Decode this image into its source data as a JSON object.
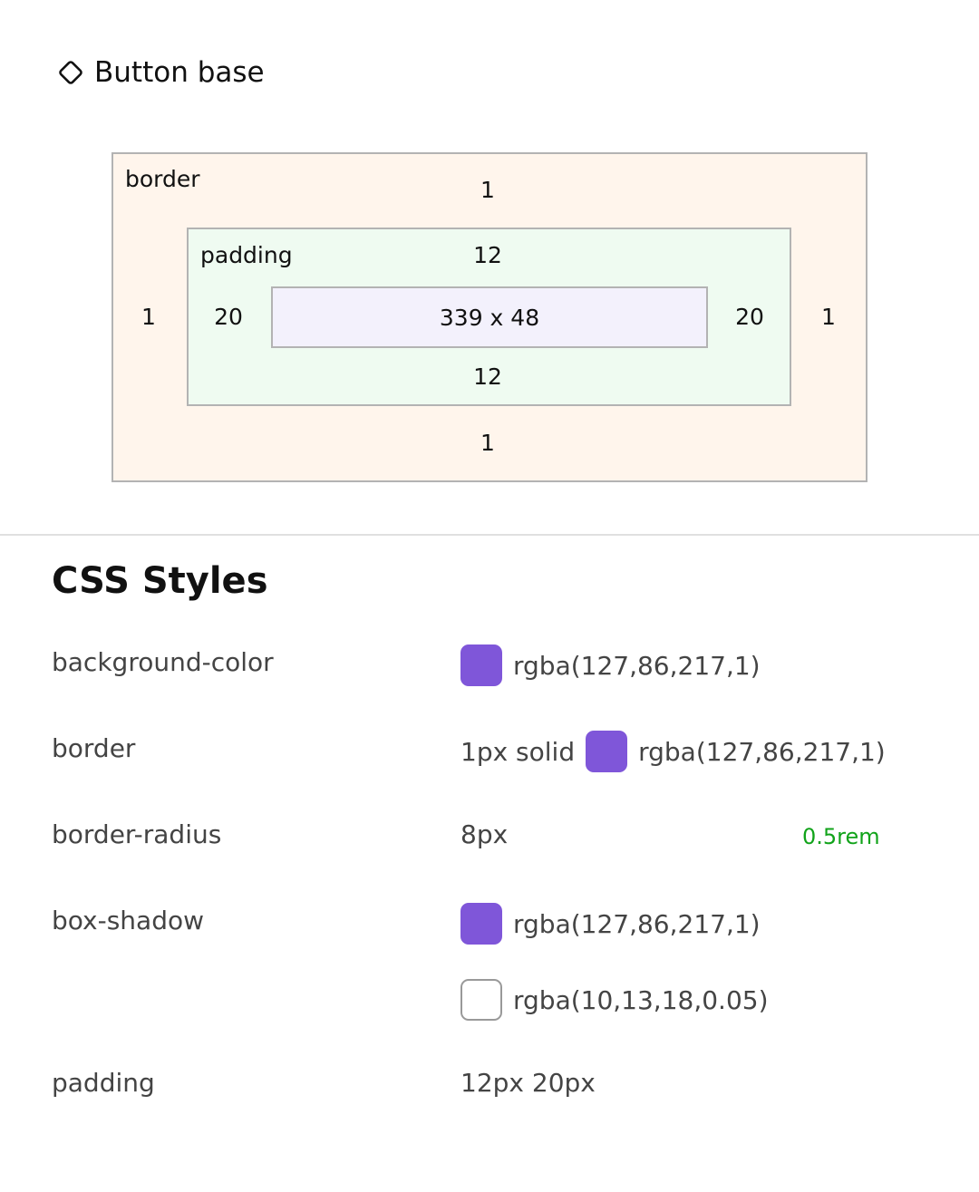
{
  "component": {
    "icon": "component-diamond-icon",
    "title": "Button base"
  },
  "box_model": {
    "border_label": "border",
    "padding_label": "padding",
    "border": {
      "top": "1",
      "right": "1",
      "bottom": "1",
      "left": "1"
    },
    "padding": {
      "top": "12",
      "right": "20",
      "bottom": "12",
      "left": "20"
    },
    "content": "339 x 48"
  },
  "css": {
    "heading": "CSS Styles",
    "rows": [
      {
        "prop": "background-color",
        "swatch": "#7f56d9",
        "value": "rgba(127,86,217,1)"
      },
      {
        "prop": "border",
        "prefix": "1px solid",
        "swatch": "#7f56d9",
        "value": "rgba(127,86,217,1)"
      },
      {
        "prop": "border-radius",
        "value": "8px",
        "alt": "0.5rem",
        "alt_color": "#11a31a"
      },
      {
        "prop": "box-shadow",
        "swatch": "#7f56d9",
        "value": "rgba(127,86,217,1)",
        "value2": "rgba(10,13,18,0.05)"
      },
      {
        "prop": "padding",
        "value": "12px 20px"
      }
    ]
  }
}
